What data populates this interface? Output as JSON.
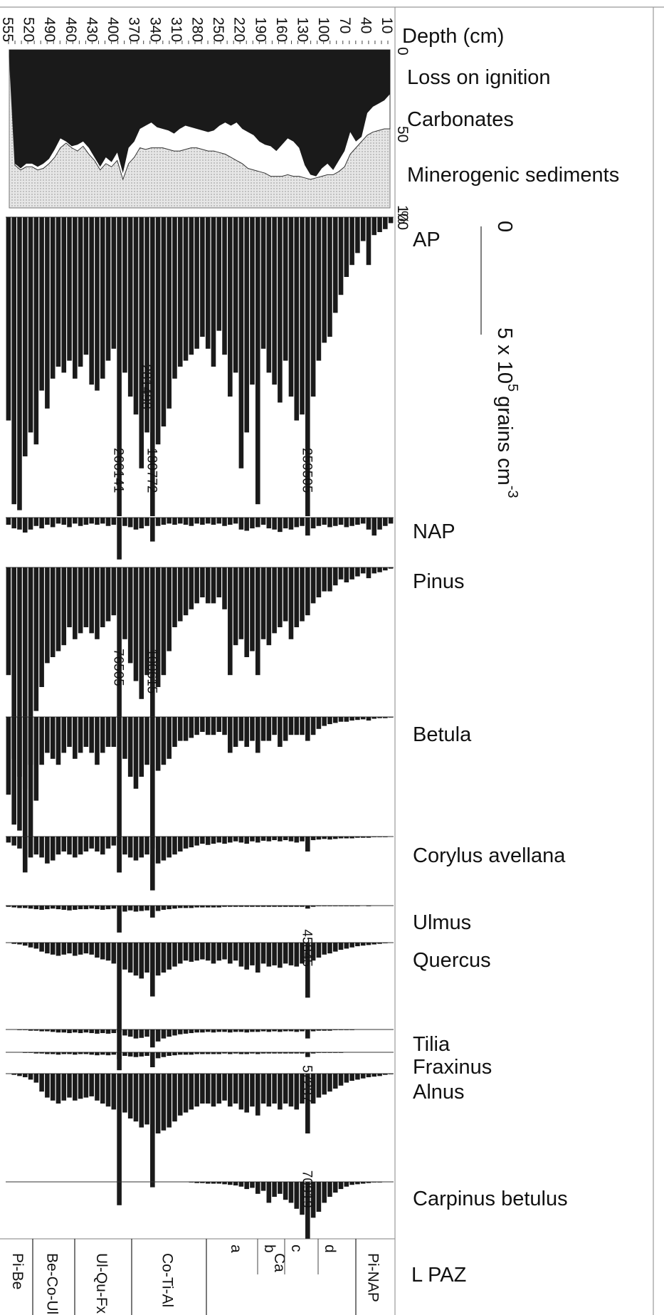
{
  "colors": {
    "ink": "#1a1a1a",
    "mineral_fill": "#dcdcdc",
    "carbonate_fill": "#ffffff",
    "frame": "#999999"
  },
  "chart_data": {
    "type": "area",
    "depth_axis": {
      "title": "Depth (cm)",
      "ticks": [
        "555",
        "520",
        "490",
        "460",
        "430",
        "400",
        "370",
        "340",
        "310",
        "280",
        "250",
        "220",
        "190",
        "160",
        "130",
        "100",
        "70",
        "40",
        "10"
      ],
      "range_cm": [
        555,
        0
      ]
    },
    "sediment_panel": {
      "series": [
        {
          "name": "Loss on ignition"
        },
        {
          "name": "Carbonates"
        },
        {
          "name": "Minerogenic sediments"
        }
      ],
      "scale_ticks": [
        "0",
        "50",
        "100"
      ],
      "scale_unit": "%",
      "range": [
        0,
        100
      ],
      "loi_boundary": [
        4,
        72,
        75,
        72,
        72,
        74,
        72,
        69,
        63,
        56,
        58,
        61,
        60,
        58,
        62,
        68,
        74,
        68,
        71,
        65,
        78,
        62,
        58,
        50,
        48,
        46,
        49,
        50,
        51,
        53,
        50,
        48,
        49,
        50,
        51,
        52,
        51,
        48,
        46,
        48,
        46,
        50,
        52,
        54,
        58,
        60,
        61,
        64,
        60,
        56,
        58,
        62,
        73,
        79,
        80,
        75,
        72,
        76,
        70,
        64,
        52,
        58,
        55,
        40,
        36,
        34,
        32,
        28
      ],
      "carbonate_boundary": [
        4,
        73,
        76,
        74,
        74,
        76,
        75,
        72,
        68,
        62,
        59,
        62,
        64,
        61,
        66,
        70,
        76,
        72,
        74,
        70,
        82,
        72,
        68,
        62,
        63,
        62,
        62,
        62,
        63,
        64,
        64,
        63,
        62,
        62,
        63,
        64,
        64,
        65,
        66,
        68,
        70,
        72,
        75,
        76,
        77,
        78,
        80,
        80,
        80,
        79,
        80,
        80,
        81,
        82,
        81,
        80,
        79,
        79,
        77,
        74,
        66,
        62,
        58,
        54,
        52,
        51,
        50,
        50
      ]
    },
    "pollen_scale": {
      "min_label": "0",
      "max_label": "5 x 10",
      "exponent": "5",
      "unit": "grains cm",
      "unit_exponent": "-3"
    },
    "taxa": [
      {
        "name": "AP",
        "annotations": [
          {
            "text": "266141",
            "index": 20
          },
          {
            "text": "281498",
            "index": 25
          },
          {
            "text": "180772",
            "index": 26
          },
          {
            "text": "259505",
            "index": 54
          }
        ],
        "values": [
          3.4,
          4.8,
          4.9,
          4.0,
          3.6,
          3.8,
          2.9,
          3.2,
          2.7,
          2.5,
          2.6,
          2.4,
          2.7,
          2.5,
          2.3,
          2.8,
          2.9,
          2.7,
          2.4,
          2.2,
          5.0,
          2.6,
          3.0,
          3.3,
          4.2,
          3.6,
          5.0,
          3.8,
          3.5,
          3.2,
          2.7,
          2.5,
          2.4,
          2.3,
          2.2,
          2.0,
          2.2,
          2.5,
          1.9,
          2.3,
          3.0,
          2.6,
          4.2,
          3.6,
          2.8,
          4.8,
          2.2,
          2.6,
          2.8,
          3.1,
          2.4,
          3.0,
          3.4,
          3.3,
          5.0,
          3.0,
          2.4,
          2.1,
          2.0,
          1.6,
          1.3,
          1.0,
          0.8,
          0.6,
          0.4,
          0.8,
          0.3,
          0.25,
          0.2,
          0.1
        ]
      },
      {
        "name": "NAP",
        "values": [
          0.12,
          0.18,
          0.2,
          0.25,
          0.2,
          0.14,
          0.18,
          0.12,
          0.16,
          0.1,
          0.12,
          0.16,
          0.1,
          0.14,
          0.12,
          0.1,
          0.12,
          0.1,
          0.14,
          0.12,
          0.7,
          0.14,
          0.16,
          0.2,
          0.18,
          0.14,
          0.4,
          0.14,
          0.12,
          0.1,
          0.12,
          0.1,
          0.12,
          0.14,
          0.1,
          0.12,
          0.1,
          0.12,
          0.1,
          0.14,
          0.12,
          0.1,
          0.2,
          0.22,
          0.18,
          0.16,
          0.12,
          0.18,
          0.2,
          0.24,
          0.18,
          0.2,
          0.16,
          0.14,
          0.3,
          0.18,
          0.14,
          0.12,
          0.16,
          0.14,
          0.12,
          0.16,
          0.14,
          0.12,
          0.1,
          0.2,
          0.3,
          0.2,
          0.14,
          0.1
        ]
      },
      {
        "name": "Pinus",
        "annotations": [
          {
            "text": "76505",
            "index": 20
          },
          {
            "text": "100615",
            "index": 26
          }
        ],
        "values": [
          1.8,
          3.2,
          3.5,
          3.7,
          3.3,
          2.4,
          2.0,
          1.6,
          1.5,
          1.4,
          1.3,
          1.0,
          1.2,
          1.1,
          1.0,
          1.1,
          1.2,
          1.0,
          0.9,
          0.8,
          2.5,
          1.2,
          1.6,
          1.9,
          2.2,
          1.8,
          2.5,
          2.0,
          1.8,
          1.4,
          1.0,
          0.9,
          0.8,
          0.7,
          0.6,
          0.5,
          0.6,
          0.6,
          0.5,
          0.7,
          1.8,
          1.3,
          1.2,
          1.5,
          1.4,
          1.8,
          1.2,
          1.3,
          1.1,
          1.0,
          0.9,
          1.2,
          1.0,
          0.9,
          0.8,
          0.6,
          0.5,
          0.4,
          0.4,
          0.3,
          0.2,
          0.25,
          0.2,
          0.15,
          0.1,
          0.18,
          0.1,
          0.08,
          0.05,
          0.02
        ]
      },
      {
        "name": "Betula",
        "values": [
          1.3,
          1.8,
          1.9,
          2.6,
          2.0,
          1.4,
          0.8,
          0.6,
          0.7,
          0.8,
          0.6,
          0.5,
          0.7,
          0.6,
          0.5,
          0.6,
          0.8,
          0.6,
          0.5,
          0.5,
          2.6,
          0.7,
          1.0,
          1.2,
          1.0,
          0.8,
          2.2,
          0.9,
          0.8,
          0.7,
          0.5,
          0.4,
          0.4,
          0.35,
          0.3,
          0.25,
          0.3,
          0.3,
          0.25,
          0.3,
          0.6,
          0.5,
          0.4,
          0.5,
          0.4,
          0.6,
          0.4,
          0.4,
          0.3,
          0.5,
          0.4,
          0.3,
          0.3,
          0.3,
          0.4,
          0.3,
          0.2,
          0.15,
          0.12,
          0.1,
          0.08,
          0.08,
          0.06,
          0.05,
          0.04,
          0.06,
          0.03,
          0.02,
          0.02,
          0.01
        ]
      },
      {
        "name": "Corylus avellana",
        "values": [
          0.1,
          0.15,
          0.2,
          0.3,
          0.35,
          0.3,
          0.35,
          0.45,
          0.4,
          0.3,
          0.25,
          0.3,
          0.35,
          0.3,
          0.25,
          0.2,
          0.25,
          0.3,
          0.2,
          0.15,
          0.6,
          0.3,
          0.35,
          0.4,
          0.35,
          0.3,
          0.9,
          0.45,
          0.4,
          0.35,
          0.3,
          0.25,
          0.2,
          0.18,
          0.15,
          0.12,
          0.14,
          0.12,
          0.1,
          0.12,
          0.1,
          0.08,
          0.1,
          0.12,
          0.08,
          0.1,
          0.07,
          0.08,
          0.06,
          0.08,
          0.06,
          0.08,
          0.1,
          0.08,
          0.25,
          0.06,
          0.05,
          0.04,
          0.05,
          0.04,
          0.03,
          0.03,
          0.03,
          0.02,
          0.02,
          0.02,
          0.01,
          0.01,
          0.01,
          0.0
        ]
      },
      {
        "name": "Ulmus",
        "values": [
          0.02,
          0.03,
          0.04,
          0.04,
          0.05,
          0.06,
          0.07,
          0.06,
          0.05,
          0.06,
          0.07,
          0.08,
          0.07,
          0.06,
          0.06,
          0.05,
          0.06,
          0.07,
          0.06,
          0.05,
          0.45,
          0.1,
          0.08,
          0.1,
          0.09,
          0.08,
          0.2,
          0.09,
          0.07,
          0.06,
          0.05,
          0.04,
          0.04,
          0.04,
          0.03,
          0.03,
          0.03,
          0.03,
          0.03,
          0.02,
          0.02,
          0.02,
          0.02,
          0.02,
          0.02,
          0.02,
          0.02,
          0.02,
          0.02,
          0.02,
          0.02,
          0.02,
          0.02,
          0.02,
          0.05,
          0.02,
          0.01,
          0.01,
          0.01,
          0.01,
          0.01,
          0.01,
          0.01,
          0.01,
          0.0,
          0.01,
          0.0,
          0.0,
          0.0,
          0.0
        ]
      },
      {
        "name": "Quercus",
        "annotations": [
          {
            "text": "45845",
            "index": 54
          }
        ],
        "values": [
          0.0,
          0.02,
          0.03,
          0.05,
          0.08,
          0.1,
          0.15,
          0.18,
          0.2,
          0.22,
          0.2,
          0.18,
          0.22,
          0.2,
          0.18,
          0.2,
          0.25,
          0.28,
          0.3,
          0.35,
          1.5,
          0.45,
          0.5,
          0.55,
          0.6,
          0.5,
          0.9,
          0.55,
          0.5,
          0.45,
          0.4,
          0.35,
          0.3,
          0.32,
          0.3,
          0.28,
          0.3,
          0.35,
          0.3,
          0.28,
          0.35,
          0.3,
          0.4,
          0.45,
          0.38,
          0.5,
          0.35,
          0.4,
          0.38,
          0.42,
          0.35,
          0.38,
          0.4,
          0.35,
          0.92,
          0.3,
          0.25,
          0.2,
          0.18,
          0.15,
          0.12,
          0.1,
          0.08,
          0.06,
          0.05,
          0.04,
          0.03,
          0.02,
          0.01,
          0.0
        ]
      },
      {
        "name": "Tilia",
        "values": [
          0.0,
          0.0,
          0.01,
          0.01,
          0.02,
          0.02,
          0.03,
          0.03,
          0.04,
          0.05,
          0.05,
          0.06,
          0.05,
          0.06,
          0.05,
          0.06,
          0.07,
          0.06,
          0.07,
          0.06,
          0.5,
          0.1,
          0.12,
          0.15,
          0.14,
          0.12,
          0.3,
          0.2,
          0.15,
          0.12,
          0.1,
          0.08,
          0.07,
          0.06,
          0.05,
          0.05,
          0.04,
          0.05,
          0.04,
          0.04,
          0.05,
          0.04,
          0.04,
          0.05,
          0.04,
          0.04,
          0.03,
          0.04,
          0.03,
          0.04,
          0.03,
          0.03,
          0.04,
          0.03,
          0.15,
          0.03,
          0.02,
          0.02,
          0.02,
          0.01,
          0.01,
          0.01,
          0.01,
          0.0,
          0.0,
          0.0,
          0.0,
          0.0,
          0.0,
          0.0
        ]
      },
      {
        "name": "Fraxinus",
        "values": [
          0.0,
          0.0,
          0.0,
          0.01,
          0.01,
          0.02,
          0.02,
          0.03,
          0.03,
          0.04,
          0.03,
          0.03,
          0.04,
          0.03,
          0.03,
          0.04,
          0.05,
          0.04,
          0.05,
          0.04,
          0.3,
          0.06,
          0.07,
          0.08,
          0.07,
          0.06,
          0.25,
          0.1,
          0.08,
          0.06,
          0.05,
          0.04,
          0.04,
          0.04,
          0.03,
          0.03,
          0.03,
          0.03,
          0.03,
          0.02,
          0.03,
          0.02,
          0.03,
          0.03,
          0.02,
          0.03,
          0.02,
          0.02,
          0.02,
          0.02,
          0.02,
          0.02,
          0.02,
          0.02,
          0.08,
          0.02,
          0.01,
          0.01,
          0.01,
          0.01,
          0.01,
          0.0,
          0.0,
          0.0,
          0.0,
          0.0,
          0.0,
          0.0,
          0.0,
          0.0
        ]
      },
      {
        "name": "Alnus",
        "annotations": [
          {
            "text": "57237",
            "index": 54
          }
        ],
        "values": [
          0.0,
          0.02,
          0.04,
          0.06,
          0.1,
          0.15,
          0.3,
          0.4,
          0.45,
          0.5,
          0.45,
          0.4,
          0.45,
          0.42,
          0.4,
          0.38,
          0.45,
          0.5,
          0.55,
          0.6,
          2.2,
          0.65,
          0.75,
          0.8,
          0.9,
          0.85,
          1.9,
          1.0,
          0.95,
          0.9,
          0.8,
          0.7,
          0.65,
          0.6,
          0.55,
          0.5,
          0.5,
          0.55,
          0.5,
          0.45,
          0.55,
          0.5,
          0.6,
          0.65,
          0.55,
          0.7,
          0.5,
          0.55,
          0.5,
          0.6,
          0.5,
          0.55,
          0.6,
          0.5,
          1.0,
          0.5,
          0.4,
          0.35,
          0.3,
          0.25,
          0.2,
          0.15,
          0.12,
          0.1,
          0.08,
          0.06,
          0.05,
          0.04,
          0.02,
          0.01
        ]
      },
      {
        "name": "Carpinus betulus",
        "annotations": [
          {
            "text": "70919",
            "index": 54
          }
        ],
        "values": [
          0.0,
          0.0,
          0.0,
          0.0,
          0.0,
          0.0,
          0.0,
          0.0,
          0.0,
          0.0,
          0.0,
          0.0,
          0.0,
          0.0,
          0.0,
          0.0,
          0.0,
          0.0,
          0.0,
          0.0,
          0.0,
          0.0,
          0.0,
          0.0,
          0.0,
          0.0,
          0.0,
          0.0,
          0.0,
          0.0,
          0.0,
          0.0,
          0.0,
          0.01,
          0.02,
          0.02,
          0.03,
          0.03,
          0.03,
          0.04,
          0.05,
          0.06,
          0.08,
          0.12,
          0.1,
          0.2,
          0.15,
          0.35,
          0.25,
          0.2,
          0.3,
          0.35,
          0.45,
          0.55,
          0.95,
          0.6,
          0.5,
          0.35,
          0.25,
          0.18,
          0.12,
          0.08,
          0.05,
          0.04,
          0.03,
          0.02,
          0.01,
          0.01,
          0.0,
          0.0
        ]
      }
    ],
    "lpaz": {
      "title": "L PAZ",
      "zones": [
        {
          "label": "Pi-Be"
        },
        {
          "label": "Be-Co-Ul"
        },
        {
          "label": "Ul-Qu-Fx"
        },
        {
          "label": "Co-Ti-Al"
        },
        {
          "label": "Ca"
        },
        {
          "label": "Pi-NAP"
        }
      ],
      "subzones": [
        "a",
        "b",
        "c",
        "d"
      ]
    }
  }
}
